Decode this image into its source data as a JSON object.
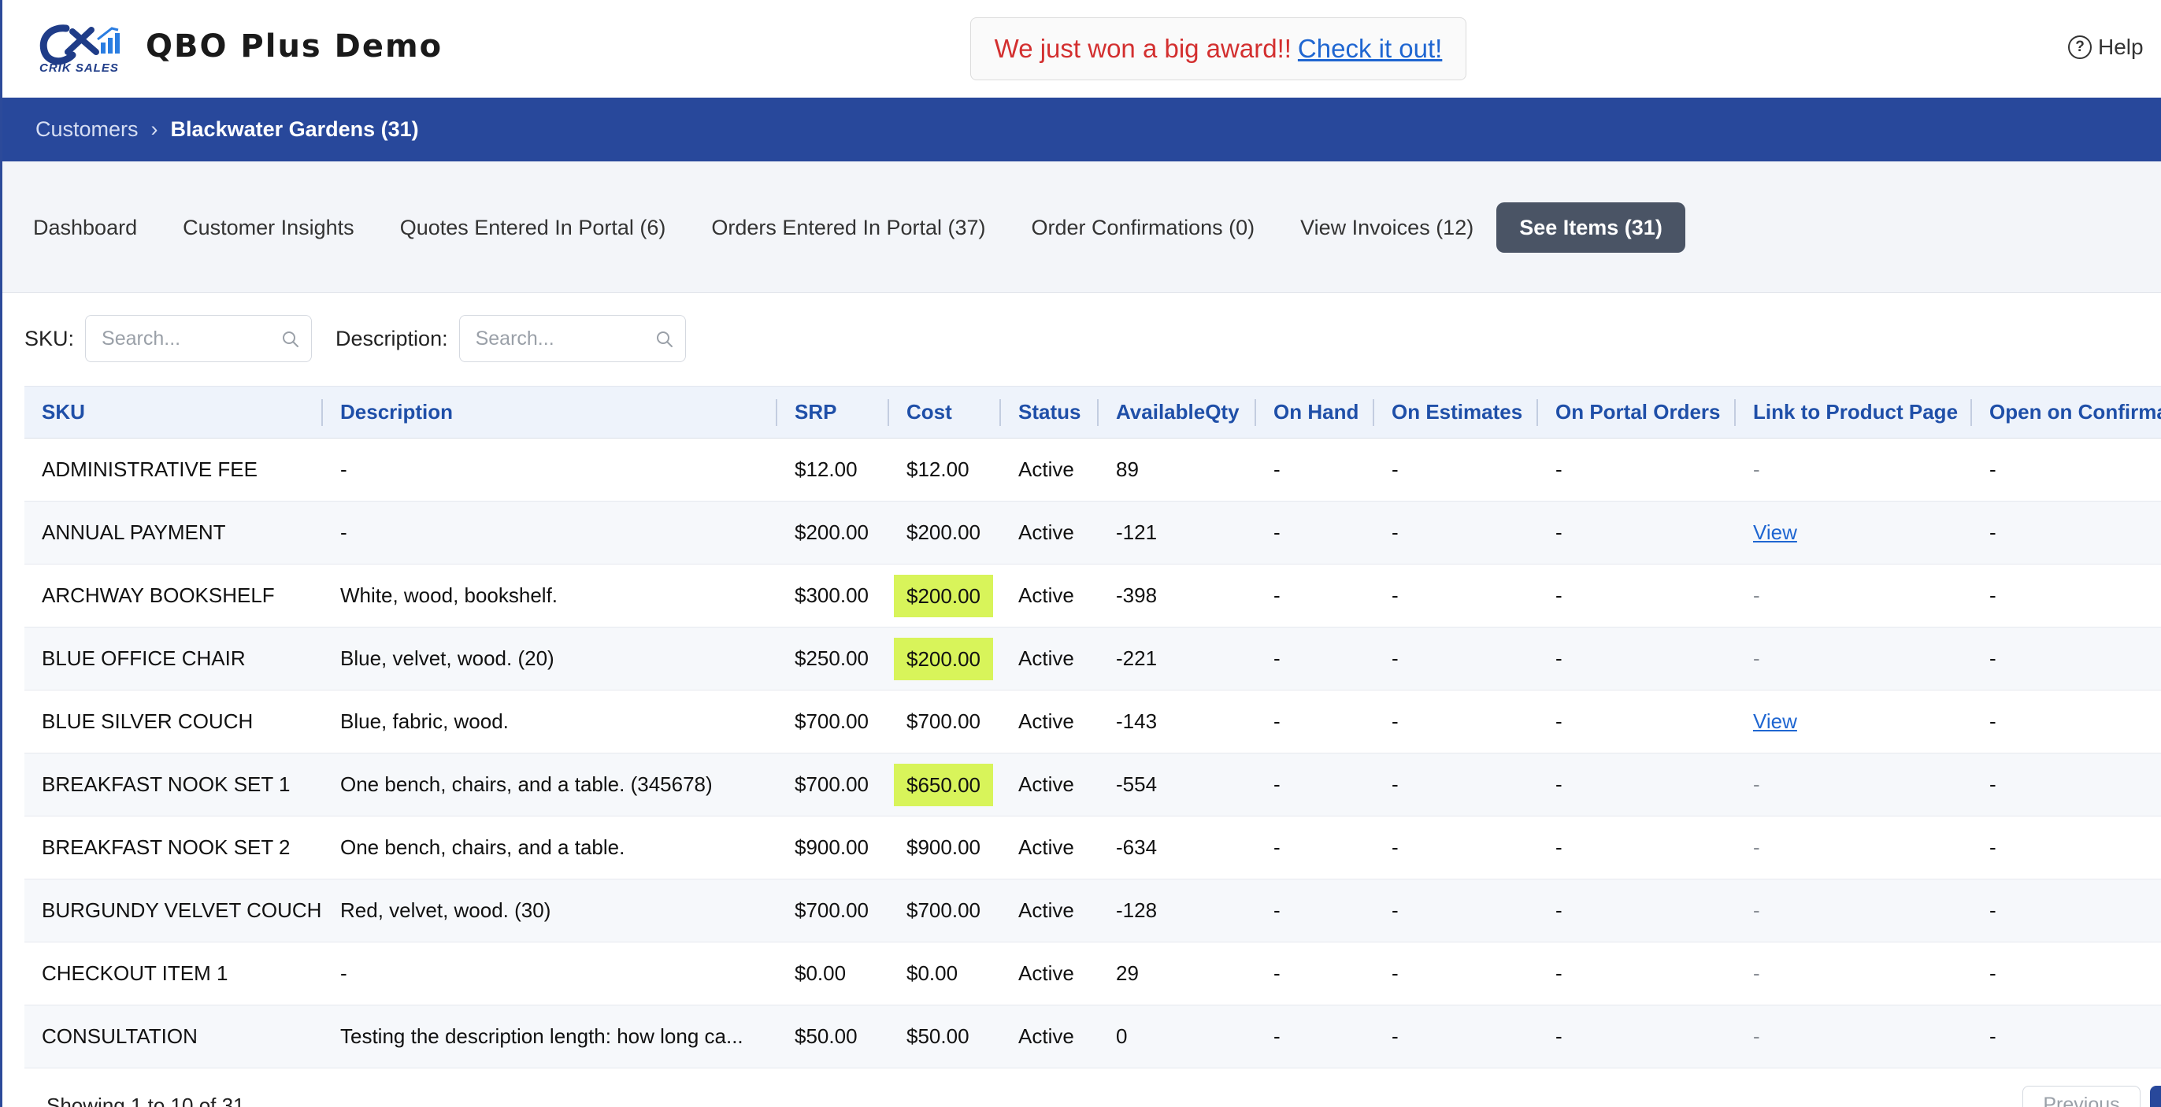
{
  "header": {
    "logo_text": "CRIK SALES",
    "app_title": "QBO Plus Demo",
    "award_text": "We just won a big award!!",
    "award_link": "Check it out!",
    "help_label": "Help"
  },
  "breadcrumb": {
    "parent": "Customers",
    "separator": "›",
    "current": "Blackwater Gardens (31)"
  },
  "tabs": [
    {
      "label": "Dashboard",
      "active": false
    },
    {
      "label": "Customer Insights",
      "active": false
    },
    {
      "label": "Quotes Entered In Portal (6)",
      "active": false
    },
    {
      "label": "Orders Entered In Portal (37)",
      "active": false
    },
    {
      "label": "Order Confirmations (0)",
      "active": false
    },
    {
      "label": "View Invoices (12)",
      "active": false
    },
    {
      "label": "See Items (31)",
      "active": true
    }
  ],
  "filters": {
    "sku_label": "SKU:",
    "sku_placeholder": "Search...",
    "description_label": "Description:",
    "description_placeholder": "Search..."
  },
  "table": {
    "columns": [
      "SKU",
      "Description",
      "SRP",
      "Cost",
      "Status",
      "AvailableQty",
      "On Hand",
      "On Estimates",
      "On Portal Orders",
      "Link to Product Page",
      "Open on Confirma"
    ],
    "rows": [
      {
        "sku": "ADMINISTRATIVE FEE",
        "description": "-",
        "srp": "$12.00",
        "cost": "$12.00",
        "cost_highlight": false,
        "status": "Active",
        "available": "89",
        "on_hand": "-",
        "on_estimates": "-",
        "on_portal": "-",
        "link": "-",
        "link_is_view": false,
        "open_conf": "-"
      },
      {
        "sku": "ANNUAL PAYMENT",
        "description": "-",
        "srp": "$200.00",
        "cost": "$200.00",
        "cost_highlight": false,
        "status": "Active",
        "available": "-121",
        "on_hand": "-",
        "on_estimates": "-",
        "on_portal": "-",
        "link": "View",
        "link_is_view": true,
        "open_conf": "-"
      },
      {
        "sku": "ARCHWAY BOOKSHELF",
        "description": "White, wood, bookshelf.",
        "srp": "$300.00",
        "cost": "$200.00",
        "cost_highlight": true,
        "status": "Active",
        "available": "-398",
        "on_hand": "-",
        "on_estimates": "-",
        "on_portal": "-",
        "link": "-",
        "link_is_view": false,
        "open_conf": "-"
      },
      {
        "sku": "BLUE OFFICE CHAIR",
        "description": "Blue, velvet, wood. (20)",
        "srp": "$250.00",
        "cost": "$200.00",
        "cost_highlight": true,
        "status": "Active",
        "available": "-221",
        "on_hand": "-",
        "on_estimates": "-",
        "on_portal": "-",
        "link": "-",
        "link_is_view": false,
        "open_conf": "-"
      },
      {
        "sku": "BLUE SILVER COUCH",
        "description": "Blue, fabric, wood.",
        "srp": "$700.00",
        "cost": "$700.00",
        "cost_highlight": false,
        "status": "Active",
        "available": "-143",
        "on_hand": "-",
        "on_estimates": "-",
        "on_portal": "-",
        "link": "View",
        "link_is_view": true,
        "open_conf": "-"
      },
      {
        "sku": "BREAKFAST NOOK SET 1",
        "description": "One bench, chairs, and a table. (345678)",
        "srp": "$700.00",
        "cost": "$650.00",
        "cost_highlight": true,
        "status": "Active",
        "available": "-554",
        "on_hand": "-",
        "on_estimates": "-",
        "on_portal": "-",
        "link": "-",
        "link_is_view": false,
        "open_conf": "-"
      },
      {
        "sku": "BREAKFAST NOOK SET 2",
        "description": "One bench, chairs, and a table.",
        "srp": "$900.00",
        "cost": "$900.00",
        "cost_highlight": false,
        "status": "Active",
        "available": "-634",
        "on_hand": "-",
        "on_estimates": "-",
        "on_portal": "-",
        "link": "-",
        "link_is_view": false,
        "open_conf": "-"
      },
      {
        "sku": "BURGUNDY VELVET COUCH",
        "description": "Red, velvet, wood. (30)",
        "srp": "$700.00",
        "cost": "$700.00",
        "cost_highlight": false,
        "status": "Active",
        "available": "-128",
        "on_hand": "-",
        "on_estimates": "-",
        "on_portal": "-",
        "link": "-",
        "link_is_view": false,
        "open_conf": "-"
      },
      {
        "sku": "CHECKOUT ITEM 1",
        "description": "-",
        "srp": "$0.00",
        "cost": "$0.00",
        "cost_highlight": false,
        "status": "Active",
        "available": "29",
        "on_hand": "-",
        "on_estimates": "-",
        "on_portal": "-",
        "link": "-",
        "link_is_view": false,
        "open_conf": "-"
      },
      {
        "sku": "CONSULTATION",
        "description": "Testing the description length: how long ca...",
        "srp": "$50.00",
        "cost": "$50.00",
        "cost_highlight": false,
        "status": "Active",
        "available": "0",
        "on_hand": "-",
        "on_estimates": "-",
        "on_portal": "-",
        "link": "-",
        "link_is_view": false,
        "open_conf": "-"
      }
    ]
  },
  "pagination": {
    "showing": "Showing 1 to 10 of 31",
    "previous_label": "Previous"
  },
  "colors": {
    "brand_blue": "#28489b",
    "header_text_blue": "#1f4fa8",
    "active_tab": "#4a5465",
    "cost_highlight": "#d8f45a",
    "award_red": "#d32f2f",
    "link_blue": "#1f66d1"
  }
}
